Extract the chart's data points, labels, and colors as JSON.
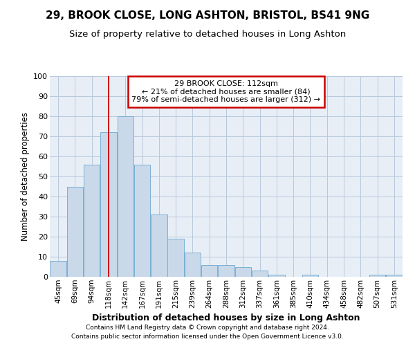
{
  "title1": "29, BROOK CLOSE, LONG ASHTON, BRISTOL, BS41 9NG",
  "title2": "Size of property relative to detached houses in Long Ashton",
  "xlabel": "Distribution of detached houses by size in Long Ashton",
  "ylabel": "Number of detached properties",
  "categories": [
    "45sqm",
    "69sqm",
    "94sqm",
    "118sqm",
    "142sqm",
    "167sqm",
    "191sqm",
    "215sqm",
    "239sqm",
    "264sqm",
    "288sqm",
    "312sqm",
    "337sqm",
    "361sqm",
    "385sqm",
    "410sqm",
    "434sqm",
    "458sqm",
    "482sqm",
    "507sqm",
    "531sqm"
  ],
  "values": [
    8,
    45,
    56,
    72,
    80,
    56,
    31,
    19,
    12,
    6,
    6,
    5,
    3,
    1,
    0,
    1,
    0,
    0,
    0,
    1,
    1
  ],
  "bar_color": "#c9d9ea",
  "bar_edge_color": "#7aafd4",
  "grid_color": "#b8c8dc",
  "background_color": "#e8eef6",
  "annotation_text_line1": "29 BROOK CLOSE: 112sqm",
  "annotation_text_line2": "← 21% of detached houses are smaller (84)",
  "annotation_text_line3": "79% of semi-detached houses are larger (312) →",
  "annotation_box_color": "#ffffff",
  "annotation_box_edge_color": "#cc0000",
  "property_line_color": "#cc0000",
  "footer1": "Contains HM Land Registry data © Crown copyright and database right 2024.",
  "footer2": "Contains public sector information licensed under the Open Government Licence v3.0.",
  "ylim": [
    0,
    100
  ],
  "property_line_index": 3
}
